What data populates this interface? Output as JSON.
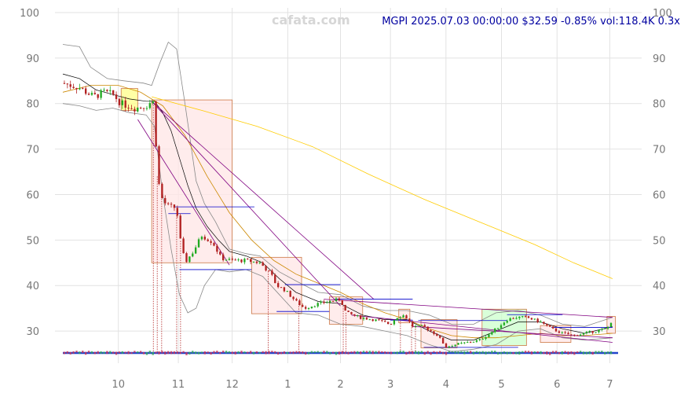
{
  "watermark": "cafata.com",
  "header": "MGPI 2025.07.03 00:00:00 $32.59 -0.85% vol:118.4K 0.3x",
  "chart_data": {
    "type": "candlestick",
    "title": "MGPI 2025.07.03 00:00:00 $32.59 -0.85% vol:118.4K 0.3x",
    "ylim": [
      25,
      100
    ],
    "y_ticks": [
      30,
      40,
      50,
      60,
      70,
      80,
      90,
      100
    ],
    "x_ticks": [
      {
        "label": "10",
        "t": 1.0
      },
      {
        "label": "11",
        "t": 2.08
      },
      {
        "label": "12",
        "t": 3.05
      },
      {
        "label": "1",
        "t": 4.05
      },
      {
        "label": "2",
        "t": 5.0
      },
      {
        "label": "3",
        "t": 5.9
      },
      {
        "label": "4",
        "t": 6.9
      },
      {
        "label": "5",
        "t": 7.9
      },
      {
        "label": "6",
        "t": 8.9
      },
      {
        "label": "7",
        "t": 9.85
      }
    ],
    "xlim": [
      0,
      10
    ],
    "grid": true,
    "colors": {
      "up": "#22aa22",
      "down": "#b22222",
      "bb": "#888888",
      "ma_short": "#000000",
      "ma_long": "#ffcc00",
      "trend": "#800080",
      "level": "#0000cc",
      "box_edge": "#cc7744"
    },
    "price_anchors": [
      [
        0.0,
        84.5
      ],
      [
        0.3,
        83.5
      ],
      [
        0.55,
        81.5
      ],
      [
        0.75,
        82.5
      ],
      [
        0.9,
        82.0
      ],
      [
        1.05,
        80.0
      ],
      [
        1.3,
        79.0
      ],
      [
        1.5,
        79.5
      ],
      [
        1.6,
        80.5
      ],
      [
        1.65,
        80.0
      ],
      [
        1.7,
        64.0
      ],
      [
        1.8,
        58.5
      ],
      [
        1.9,
        57.5
      ],
      [
        2.05,
        57.0
      ],
      [
        2.1,
        51.0
      ],
      [
        2.2,
        45.0
      ],
      [
        2.35,
        47.5
      ],
      [
        2.5,
        51.0
      ],
      [
        2.7,
        49.5
      ],
      [
        2.85,
        46.0
      ],
      [
        3.05,
        45.5
      ],
      [
        3.3,
        45.5
      ],
      [
        3.55,
        45.0
      ],
      [
        3.75,
        42.5
      ],
      [
        3.85,
        40.0
      ],
      [
        4.0,
        39.0
      ],
      [
        4.2,
        36.5
      ],
      [
        4.35,
        35.0
      ],
      [
        4.6,
        36.0
      ],
      [
        4.8,
        36.5
      ],
      [
        5.0,
        37.0
      ],
      [
        5.1,
        34.0
      ],
      [
        5.35,
        33.0
      ],
      [
        5.6,
        32.5
      ],
      [
        5.9,
        31.5
      ],
      [
        6.0,
        33.0
      ],
      [
        6.15,
        33.5
      ],
      [
        6.3,
        31.0
      ],
      [
        6.5,
        31.0
      ],
      [
        6.75,
        29.0
      ],
      [
        6.9,
        26.5
      ],
      [
        7.05,
        27.0
      ],
      [
        7.3,
        27.5
      ],
      [
        7.5,
        28.0
      ],
      [
        7.7,
        29.5
      ],
      [
        7.85,
        31.0
      ],
      [
        8.0,
        32.5
      ],
      [
        8.15,
        33.0
      ],
      [
        8.35,
        33.0
      ],
      [
        8.6,
        32.0
      ],
      [
        8.8,
        30.5
      ],
      [
        9.0,
        29.5
      ],
      [
        9.2,
        29.0
      ],
      [
        9.4,
        29.5
      ],
      [
        9.6,
        30.0
      ],
      [
        9.8,
        30.5
      ],
      [
        9.9,
        32.6
      ]
    ],
    "candle_count": 180,
    "bollinger_upper": [
      [
        0.0,
        93.0
      ],
      [
        0.3,
        92.5
      ],
      [
        0.5,
        88.0
      ],
      [
        0.8,
        85.5
      ],
      [
        1.1,
        85.0
      ],
      [
        1.45,
        84.5
      ],
      [
        1.6,
        84.0
      ],
      [
        1.75,
        89.0
      ],
      [
        1.9,
        93.5
      ],
      [
        2.05,
        92.0
      ],
      [
        2.2,
        80.0
      ],
      [
        2.4,
        63.0
      ],
      [
        2.55,
        58.0
      ],
      [
        2.75,
        54.0
      ],
      [
        3.0,
        48.0
      ],
      [
        3.3,
        47.0
      ],
      [
        3.55,
        46.5
      ],
      [
        3.9,
        43.0
      ],
      [
        4.2,
        41.0
      ],
      [
        4.6,
        38.5
      ],
      [
        5.0,
        38.0
      ],
      [
        5.4,
        35.5
      ],
      [
        5.8,
        34.5
      ],
      [
        6.2,
        34.5
      ],
      [
        6.6,
        33.5
      ],
      [
        7.0,
        31.5
      ],
      [
        7.4,
        31.5
      ],
      [
        7.8,
        34.0
      ],
      [
        8.2,
        34.5
      ],
      [
        8.6,
        33.5
      ],
      [
        9.0,
        31.5
      ],
      [
        9.4,
        31.0
      ],
      [
        9.9,
        33.0
      ]
    ],
    "bollinger_lower": [
      [
        0.0,
        80.0
      ],
      [
        0.3,
        79.5
      ],
      [
        0.6,
        78.5
      ],
      [
        0.9,
        79.0
      ],
      [
        1.2,
        78.0
      ],
      [
        1.5,
        77.5
      ],
      [
        1.65,
        75.0
      ],
      [
        1.8,
        60.0
      ],
      [
        1.95,
        48.0
      ],
      [
        2.1,
        38.0
      ],
      [
        2.25,
        34.0
      ],
      [
        2.4,
        35.0
      ],
      [
        2.55,
        40.0
      ],
      [
        2.75,
        43.5
      ],
      [
        3.0,
        43.0
      ],
      [
        3.3,
        43.5
      ],
      [
        3.6,
        42.0
      ],
      [
        3.9,
        38.0
      ],
      [
        4.2,
        34.0
      ],
      [
        4.6,
        33.5
      ],
      [
        5.0,
        31.5
      ],
      [
        5.4,
        31.0
      ],
      [
        5.8,
        30.0
      ],
      [
        6.2,
        29.0
      ],
      [
        6.6,
        27.0
      ],
      [
        7.0,
        25.5
      ],
      [
        7.4,
        26.0
      ],
      [
        7.8,
        27.0
      ],
      [
        8.2,
        30.0
      ],
      [
        8.6,
        30.5
      ],
      [
        9.0,
        28.5
      ],
      [
        9.4,
        28.0
      ],
      [
        9.9,
        28.5
      ]
    ],
    "ma_short": [
      [
        0.0,
        86.5
      ],
      [
        0.3,
        85.5
      ],
      [
        0.6,
        83.0
      ],
      [
        0.9,
        82.0
      ],
      [
        1.2,
        81.0
      ],
      [
        1.5,
        80.5
      ],
      [
        1.65,
        80.5
      ],
      [
        1.8,
        78.0
      ],
      [
        1.95,
        74.0
      ],
      [
        2.1,
        68.0
      ],
      [
        2.25,
        62.0
      ],
      [
        2.4,
        57.0
      ],
      [
        2.6,
        53.0
      ],
      [
        2.8,
        50.0
      ],
      [
        3.0,
        47.5
      ],
      [
        3.3,
        46.5
      ],
      [
        3.6,
        45.0
      ],
      [
        3.9,
        41.5
      ],
      [
        4.2,
        38.5
      ],
      [
        4.6,
        36.5
      ],
      [
        5.0,
        36.0
      ],
      [
        5.4,
        33.5
      ],
      [
        5.8,
        32.5
      ],
      [
        6.2,
        32.5
      ],
      [
        6.6,
        30.0
      ],
      [
        7.0,
        28.0
      ],
      [
        7.4,
        28.0
      ],
      [
        7.8,
        30.0
      ],
      [
        8.2,
        32.0
      ],
      [
        8.6,
        32.0
      ],
      [
        9.0,
        30.5
      ],
      [
        9.4,
        29.5
      ],
      [
        9.9,
        31.0
      ]
    ],
    "ma_long": [
      [
        0.0,
        82.5
      ],
      [
        0.5,
        84.0
      ],
      [
        1.0,
        84.0
      ],
      [
        1.4,
        82.5
      ],
      [
        1.8,
        79.5
      ],
      [
        2.2,
        73.0
      ],
      [
        2.6,
        64.0
      ],
      [
        3.0,
        56.0
      ],
      [
        3.4,
        50.0
      ],
      [
        3.8,
        45.5
      ],
      [
        4.2,
        42.5
      ],
      [
        4.6,
        40.5
      ],
      [
        5.0,
        38.5
      ],
      [
        5.4,
        36.0
      ],
      [
        5.8,
        34.0
      ],
      [
        6.2,
        32.5
      ],
      [
        6.6,
        30.5
      ],
      [
        7.0,
        29.0
      ],
      [
        7.4,
        28.5
      ],
      [
        7.8,
        28.5
      ],
      [
        8.2,
        29.0
      ],
      [
        8.6,
        29.5
      ],
      [
        9.0,
        29.0
      ],
      [
        9.4,
        29.0
      ],
      [
        9.9,
        29.5
      ]
    ],
    "ma_200": [
      [
        1.6,
        81.5
      ],
      [
        2.5,
        78.5
      ],
      [
        3.5,
        75.0
      ],
      [
        4.5,
        70.5
      ],
      [
        5.5,
        64.5
      ],
      [
        6.5,
        59.0
      ],
      [
        7.5,
        54.0
      ],
      [
        8.5,
        49.0
      ],
      [
        9.2,
        45.0
      ],
      [
        9.9,
        41.5
      ]
    ],
    "trend_lines": [
      [
        [
          1.6,
          80.5
        ],
        [
          5.0,
          35.5
        ]
      ],
      [
        [
          1.6,
          80.5
        ],
        [
          5.6,
          37.0
        ]
      ],
      [
        [
          1.35,
          76.5
        ],
        [
          3.0,
          44.5
        ]
      ],
      [
        [
          4.7,
          37.0
        ],
        [
          9.9,
          33.0
        ]
      ],
      [
        [
          5.2,
          33.5
        ],
        [
          9.9,
          27.5
        ]
      ],
      [
        [
          6.3,
          31.0
        ],
        [
          9.9,
          28.5
        ]
      ]
    ],
    "level_lines": [
      [
        2.0,
        3.45,
        57.3
      ],
      [
        1.9,
        2.3,
        55.8
      ],
      [
        2.1,
        3.4,
        43.5
      ],
      [
        4.0,
        5.0,
        40.2
      ],
      [
        3.85,
        4.8,
        34.3
      ],
      [
        4.9,
        6.3,
        37.0
      ],
      [
        5.9,
        6.3,
        32.4
      ],
      [
        6.4,
        8.0,
        32.3
      ],
      [
        8.0,
        9.0,
        33.6
      ],
      [
        8.8,
        9.9,
        30.8
      ],
      [
        6.5,
        8.2,
        26.4
      ]
    ],
    "boxes": [
      {
        "x0": 1.05,
        "x1": 1.35,
        "y0": 78.5,
        "y1": 83.3,
        "color": "#ffff88"
      },
      {
        "x0": 1.6,
        "x1": 3.05,
        "y0": 45.0,
        "y1": 80.8,
        "color": "#ffe6e6"
      },
      {
        "x0": 3.4,
        "x1": 4.3,
        "y0": 33.8,
        "y1": 46.2,
        "color": "#ffe6e6"
      },
      {
        "x0": 4.8,
        "x1": 5.4,
        "y0": 31.5,
        "y1": 37.5,
        "color": "#ffe6e6"
      },
      {
        "x0": 6.05,
        "x1": 6.25,
        "y0": 31.8,
        "y1": 34.8,
        "color": "#ffe6e6"
      },
      {
        "x0": 6.45,
        "x1": 7.1,
        "y0": 26.3,
        "y1": 32.5,
        "color": "#ffe6e6"
      },
      {
        "x0": 7.55,
        "x1": 8.35,
        "y0": 26.8,
        "y1": 34.8,
        "color": "#ccffcc"
      },
      {
        "x0": 8.6,
        "x1": 9.15,
        "y0": 27.5,
        "y1": 31.2,
        "color": "#ffe6e6"
      },
      {
        "x0": 9.8,
        "x1": 9.95,
        "y0": 29.5,
        "y1": 33.2,
        "color": "#ffe6e6"
      }
    ],
    "event_lines": [
      1.63,
      1.7,
      1.78,
      2.05,
      2.12,
      3.7,
      4.25,
      5.05,
      5.1,
      6.08,
      6.28,
      6.35
    ]
  }
}
